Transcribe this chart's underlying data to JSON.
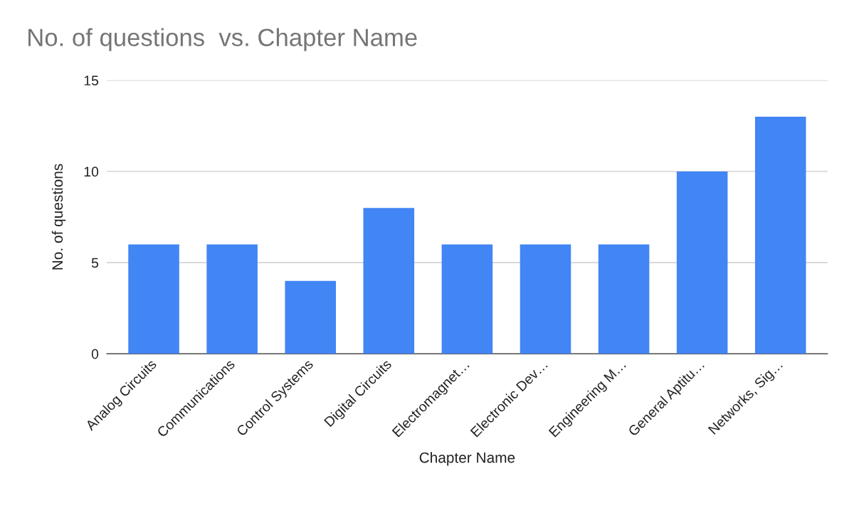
{
  "chart_data": {
    "type": "bar",
    "title": "No. of questions  vs. Chapter Name",
    "xlabel": "Chapter Name",
    "ylabel": "No. of questions",
    "categories": [
      "Analog Circuits",
      "Communications",
      "Control Systems",
      "Digital Circuits",
      "Electromagnet…",
      "Electronic Dev…",
      "Engineering M…",
      "General Aptitu…",
      "Networks, Sig…"
    ],
    "values": [
      6,
      6,
      4,
      8,
      6,
      6,
      6,
      10,
      13
    ],
    "color": "#4285f4",
    "ylim": [
      0,
      15
    ],
    "yticks": [
      0,
      5,
      10,
      15
    ],
    "grid": "y"
  }
}
